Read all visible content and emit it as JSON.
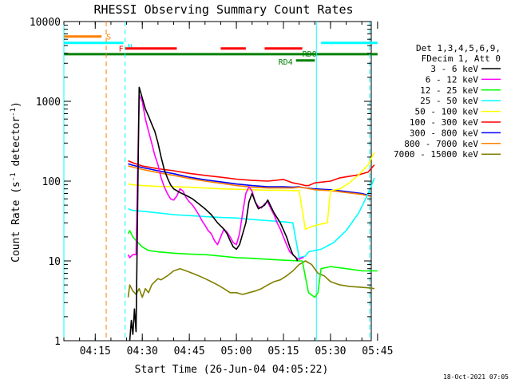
{
  "chart_data": {
    "type": "line",
    "title": "RHESSI Observing Summary Count Rates",
    "xlabel": "Start Time (26-Jun-04 04:05:22)",
    "ylabel_main": "Count Rate (s",
    "ylabel_sup": "-1",
    "ylabel_mid": " detector",
    "ylabel_end": ")",
    "yscale": "log",
    "ylim": [
      1,
      10000
    ],
    "xlim_minutes": [
      0,
      98
    ],
    "y_ticks": [
      {
        "value": 1,
        "label": "1"
      },
      {
        "value": 10,
        "label": "10"
      },
      {
        "value": 100,
        "label": "100"
      },
      {
        "value": 1000,
        "label": "1000"
      },
      {
        "value": 10000,
        "label": "10000"
      }
    ],
    "x_ticks": [
      {
        "t": 10,
        "label": "04:15"
      },
      {
        "t": 25,
        "label": "04:30"
      },
      {
        "t": 40,
        "label": "04:45"
      },
      {
        "t": 55,
        "label": "05:00"
      },
      {
        "t": 70,
        "label": "05:15"
      },
      {
        "t": 85,
        "label": "05:30"
      },
      {
        "t": 100,
        "label": "05:45"
      }
    ],
    "legend_header": [
      "Det 1,3,4,5,6,9,",
      "FDecim 1, Att 0"
    ],
    "legend_position": "right",
    "series": [
      {
        "name": "3 - 6 keV",
        "color": "#000000",
        "points": [
          [
            21,
            1
          ],
          [
            21.5,
            1.8
          ],
          [
            22,
            1.2
          ],
          [
            22.5,
            2.5
          ],
          [
            23,
            1.3
          ],
          [
            24,
            1500
          ],
          [
            25,
            1100
          ],
          [
            26,
            800
          ],
          [
            27,
            650
          ],
          [
            28,
            520
          ],
          [
            29,
            420
          ],
          [
            30,
            300
          ],
          [
            31,
            200
          ],
          [
            32,
            140
          ],
          [
            33,
            110
          ],
          [
            34,
            90
          ],
          [
            35,
            80
          ],
          [
            37,
            72
          ],
          [
            39,
            66
          ],
          [
            41,
            60
          ],
          [
            43,
            52
          ],
          [
            45,
            45
          ],
          [
            47,
            38
          ],
          [
            49,
            30
          ],
          [
            51,
            25
          ],
          [
            52,
            22
          ],
          [
            53,
            18
          ],
          [
            54,
            15
          ],
          [
            55,
            14
          ],
          [
            56,
            16
          ],
          [
            58,
            30
          ],
          [
            59,
            55
          ],
          [
            60,
            70
          ],
          [
            61,
            55
          ],
          [
            62,
            45
          ],
          [
            64,
            50
          ],
          [
            65,
            58
          ],
          [
            66,
            48
          ],
          [
            67,
            40
          ],
          [
            69,
            30
          ],
          [
            71,
            20
          ],
          [
            72,
            15
          ],
          [
            73,
            12
          ],
          [
            74,
            11
          ],
          [
            74.5,
            10
          ]
        ]
      },
      {
        "name": "6 - 12 keV",
        "color": "#ff00ff",
        "points": [
          [
            20.5,
            12
          ],
          [
            21,
            11
          ],
          [
            22,
            12
          ],
          [
            23,
            12
          ],
          [
            24,
            1200
          ],
          [
            25,
            1000
          ],
          [
            26,
            600
          ],
          [
            27,
            420
          ],
          [
            28,
            300
          ],
          [
            29,
            210
          ],
          [
            30,
            160
          ],
          [
            31,
            110
          ],
          [
            32,
            85
          ],
          [
            33,
            70
          ],
          [
            34,
            60
          ],
          [
            35,
            58
          ],
          [
            36,
            65
          ],
          [
            37,
            80
          ],
          [
            38,
            75
          ],
          [
            39,
            62
          ],
          [
            40,
            55
          ],
          [
            41,
            50
          ],
          [
            42,
            44
          ],
          [
            43,
            38
          ],
          [
            44,
            32
          ],
          [
            45,
            28
          ],
          [
            46,
            24
          ],
          [
            47,
            22
          ],
          [
            48,
            18
          ],
          [
            49,
            16
          ],
          [
            50,
            20
          ],
          [
            51,
            25
          ],
          [
            52,
            23
          ],
          [
            53,
            20
          ],
          [
            54,
            17
          ],
          [
            55,
            16
          ],
          [
            56,
            22
          ],
          [
            57,
            40
          ],
          [
            58,
            70
          ],
          [
            59,
            85
          ],
          [
            60,
            75
          ],
          [
            61,
            55
          ],
          [
            62,
            48
          ],
          [
            63,
            46
          ],
          [
            64,
            52
          ],
          [
            65,
            55
          ],
          [
            66,
            45
          ],
          [
            67,
            38
          ],
          [
            68,
            30
          ],
          [
            69,
            25
          ],
          [
            70,
            20
          ],
          [
            71,
            16
          ],
          [
            72,
            13
          ],
          [
            73,
            12
          ],
          [
            74,
            11
          ],
          [
            75,
            10.5
          ],
          [
            76,
            11
          ],
          [
            76.5,
            11
          ]
        ]
      },
      {
        "name": "12 - 25 keV",
        "color": "#00ff00",
        "points": [
          [
            20.5,
            22
          ],
          [
            21,
            24
          ],
          [
            22,
            20
          ],
          [
            23,
            18
          ],
          [
            25,
            15
          ],
          [
            27,
            13.5
          ],
          [
            30,
            13
          ],
          [
            35,
            12.5
          ],
          [
            40,
            12.2
          ],
          [
            45,
            12
          ],
          [
            50,
            11.5
          ],
          [
            55,
            11
          ],
          [
            60,
            10.8
          ],
          [
            65,
            10.5
          ],
          [
            70,
            10.2
          ],
          [
            75,
            10
          ],
          [
            76,
            10
          ],
          [
            78,
            4
          ],
          [
            80,
            3.5
          ],
          [
            81,
            4
          ],
          [
            82,
            8
          ],
          [
            85,
            8.5
          ],
          [
            90,
            8
          ],
          [
            95,
            7.5
          ],
          [
            100,
            7.5
          ]
        ]
      },
      {
        "name": "25 - 50 keV",
        "color": "#00ffff",
        "points": [
          [
            20.5,
            45
          ],
          [
            22,
            43
          ],
          [
            25,
            42
          ],
          [
            30,
            40
          ],
          [
            35,
            38
          ],
          [
            40,
            37
          ],
          [
            45,
            36
          ],
          [
            50,
            35
          ],
          [
            55,
            34.5
          ],
          [
            60,
            33
          ],
          [
            65,
            32
          ],
          [
            70,
            31
          ],
          [
            73,
            30
          ],
          [
            75,
            11
          ],
          [
            77,
            11.5
          ],
          [
            78,
            13
          ],
          [
            82,
            14
          ],
          [
            86,
            17
          ],
          [
            90,
            24
          ],
          [
            94,
            40
          ],
          [
            97,
            70
          ],
          [
            99,
            110
          ]
        ]
      },
      {
        "name": "50 - 100 keV",
        "color": "#ffff00",
        "points": [
          [
            20.5,
            92
          ],
          [
            22,
            90
          ],
          [
            25,
            88
          ],
          [
            30,
            86
          ],
          [
            35,
            85
          ],
          [
            40,
            84
          ],
          [
            45,
            82
          ],
          [
            50,
            80
          ],
          [
            55,
            79
          ],
          [
            60,
            78
          ],
          [
            65,
            77
          ],
          [
            70,
            77
          ],
          [
            73,
            76
          ],
          [
            75,
            76
          ],
          [
            77,
            25
          ],
          [
            79,
            27
          ],
          [
            82,
            29
          ],
          [
            84,
            30
          ],
          [
            85,
            76
          ],
          [
            88,
            80
          ],
          [
            91,
            95
          ],
          [
            94,
            120
          ],
          [
            97,
            160
          ],
          [
            99,
            230
          ]
        ]
      },
      {
        "name": "100 - 300 keV",
        "color": "#ff0000",
        "points": [
          [
            20.5,
            180
          ],
          [
            22,
            170
          ],
          [
            25,
            155
          ],
          [
            30,
            143
          ],
          [
            35,
            135
          ],
          [
            40,
            125
          ],
          [
            45,
            118
          ],
          [
            50,
            112
          ],
          [
            55,
            106
          ],
          [
            60,
            102
          ],
          [
            65,
            100
          ],
          [
            70,
            105
          ],
          [
            73,
            95
          ],
          [
            75,
            92
          ],
          [
            77,
            88
          ],
          [
            78,
            88
          ],
          [
            80,
            95
          ],
          [
            85,
            100
          ],
          [
            88,
            110
          ],
          [
            91,
            115
          ],
          [
            94,
            120
          ],
          [
            97,
            130
          ],
          [
            99,
            160
          ]
        ]
      },
      {
        "name": "300 - 800 keV",
        "color": "#0000ff",
        "points": [
          [
            20.5,
            165
          ],
          [
            22,
            158
          ],
          [
            25,
            148
          ],
          [
            30,
            135
          ],
          [
            35,
            124
          ],
          [
            40,
            112
          ],
          [
            45,
            104
          ],
          [
            50,
            98
          ],
          [
            55,
            92
          ],
          [
            60,
            88
          ],
          [
            65,
            85
          ],
          [
            70,
            85
          ],
          [
            73,
            84
          ],
          [
            75,
            85
          ],
          [
            77,
            82
          ],
          [
            80,
            80
          ],
          [
            85,
            78
          ],
          [
            90,
            74
          ],
          [
            95,
            70
          ],
          [
            98,
            65
          ]
        ]
      },
      {
        "name": "800 - 7000 keV",
        "color": "#ff8000",
        "points": [
          [
            20.5,
            155
          ],
          [
            22,
            150
          ],
          [
            25,
            140
          ],
          [
            30,
            128
          ],
          [
            35,
            118
          ],
          [
            40,
            108
          ],
          [
            45,
            100
          ],
          [
            50,
            94
          ],
          [
            55,
            88
          ],
          [
            60,
            84
          ],
          [
            65,
            82
          ],
          [
            70,
            82
          ],
          [
            73,
            82
          ],
          [
            75,
            84
          ],
          [
            77,
            82
          ],
          [
            80,
            78
          ],
          [
            85,
            76
          ],
          [
            90,
            72
          ],
          [
            95,
            68
          ],
          [
            98,
            64
          ]
        ]
      },
      {
        "name": "7000 - 15000 keV",
        "color": "#808000",
        "points": [
          [
            20.5,
            3.5
          ],
          [
            21,
            5
          ],
          [
            22,
            4.2
          ],
          [
            23,
            3.8
          ],
          [
            24,
            4.5
          ],
          [
            25,
            3.5
          ],
          [
            26,
            4.5
          ],
          [
            27,
            4
          ],
          [
            28,
            5
          ],
          [
            29,
            5.5
          ],
          [
            30,
            6
          ],
          [
            31,
            5.8
          ],
          [
            33,
            6.5
          ],
          [
            35,
            7.5
          ],
          [
            37,
            8
          ],
          [
            39,
            7.5
          ],
          [
            41,
            7
          ],
          [
            43,
            6.5
          ],
          [
            45,
            6
          ],
          [
            47,
            5.5
          ],
          [
            49,
            5
          ],
          [
            51,
            4.5
          ],
          [
            53,
            4
          ],
          [
            55,
            4
          ],
          [
            57,
            3.8
          ],
          [
            59,
            4
          ],
          [
            61,
            4.2
          ],
          [
            63,
            4.5
          ],
          [
            65,
            5
          ],
          [
            67,
            5.5
          ],
          [
            69,
            5.8
          ],
          [
            71,
            6.5
          ],
          [
            73,
            7.5
          ],
          [
            75,
            9
          ],
          [
            77,
            10
          ],
          [
            79,
            9
          ],
          [
            81,
            7
          ],
          [
            83,
            6.5
          ],
          [
            85,
            5.5
          ],
          [
            88,
            5
          ],
          [
            91,
            4.8
          ],
          [
            94,
            4.7
          ],
          [
            97,
            4.6
          ],
          [
            99,
            4.5
          ]
        ]
      }
    ],
    "status_bars": [
      {
        "label": "S",
        "color": "#ff8000",
        "segments": [
          [
            0,
            12
          ]
        ],
        "level": 6500
      },
      {
        "label": "N",
        "color": "#00ffff",
        "segments": [
          [
            0,
            19
          ],
          [
            82,
            100
          ]
        ],
        "level": 5400
      },
      {
        "label": "F",
        "color": "#ff0000",
        "segments": [
          [
            19.5,
            36
          ],
          [
            50,
            58
          ],
          [
            64,
            76
          ]
        ],
        "level": 4600
      },
      {
        "label": "RD0",
        "color": "#008000",
        "segments": [
          [
            0,
            100
          ]
        ],
        "level": 3900
      },
      {
        "label": "RD4",
        "color": "#008000",
        "segments": [
          [
            74,
            80
          ]
        ],
        "level": 3250
      }
    ],
    "vertical_lines": [
      {
        "t": 0,
        "color": "#00ffff",
        "style": "solid"
      },
      {
        "t": 13.5,
        "color": "#ff8000",
        "style": "dashed"
      },
      {
        "t": 19.5,
        "color": "#00ffff",
        "style": "dashed"
      },
      {
        "t": 80.5,
        "color": "#00ffff",
        "style": "solid"
      },
      {
        "t": 97.5,
        "color": "#00ffff",
        "style": "dashed"
      }
    ]
  },
  "footer": {
    "timestamp": "18-Oct-2021 07:05"
  }
}
